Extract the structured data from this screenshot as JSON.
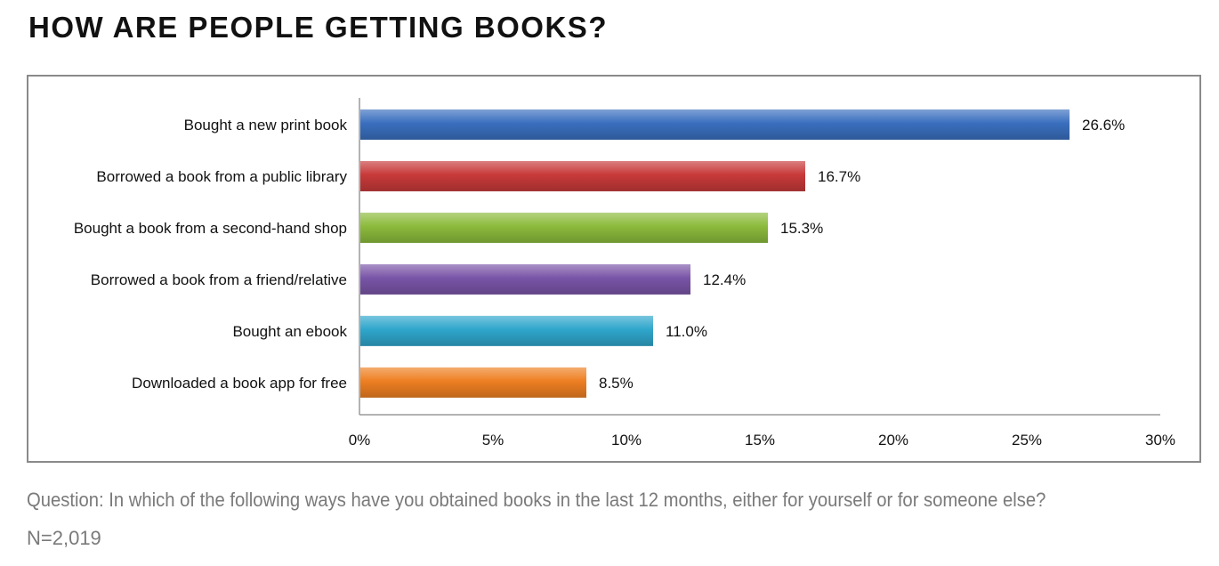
{
  "title": "HOW ARE PEOPLE GETTING BOOKS?",
  "question": "Question: In which of the following ways have you obtained books in the last 12 months, either for yourself or for someone else?",
  "sample_size": "N=2,019",
  "chart_data": {
    "type": "bar",
    "orientation": "horizontal",
    "categories": [
      "Bought a new print book",
      "Borrowed a book from a public library",
      "Bought a book from a second-hand shop",
      "Borrowed a book from a friend/relative",
      "Bought an ebook",
      "Downloaded a book app for free"
    ],
    "values": [
      26.6,
      16.7,
      15.3,
      12.4,
      11.0,
      8.5
    ],
    "value_labels": [
      "26.6%",
      "16.7%",
      "15.3%",
      "12.4%",
      "11.0%",
      "8.5%"
    ],
    "colors": [
      "#3a6fbf",
      "#c83a3a",
      "#8cbb3c",
      "#7a55a8",
      "#2fa6cc",
      "#ee7f22"
    ],
    "xlim": [
      0,
      30
    ],
    "xticks": [
      0,
      5,
      10,
      15,
      20,
      25,
      30
    ],
    "xtick_labels": [
      "0%",
      "5%",
      "10%",
      "15%",
      "20%",
      "25%",
      "30%"
    ],
    "grid": false,
    "legend": "none"
  }
}
